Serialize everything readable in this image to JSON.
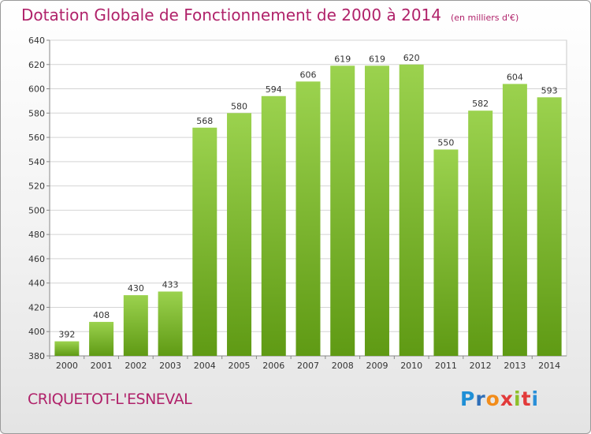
{
  "header": {
    "title": "Dotation Globale de Fonctionnement de 2000 à 2014",
    "units": "(en milliers d'€)"
  },
  "footer": {
    "commune": "CRIQUETOT-L'ESNEVAL",
    "logo_text": "Proxiti"
  },
  "colors": {
    "title": "#b0226a",
    "bar_top": "#9bd24e",
    "bar_bottom": "#5f9a14"
  },
  "chart_data": {
    "type": "bar",
    "categories": [
      "2000",
      "2001",
      "2002",
      "2003",
      "2004",
      "2005",
      "2006",
      "2007",
      "2008",
      "2009",
      "2010",
      "2011",
      "2012",
      "2013",
      "2014"
    ],
    "values": [
      392,
      408,
      430,
      433,
      568,
      580,
      594,
      606,
      619,
      619,
      620,
      550,
      582,
      604,
      593
    ],
    "title": "Dotation Globale de Fonctionnement de 2000 à 2014",
    "ylim": [
      380,
      640
    ],
    "yticks": [
      380,
      400,
      420,
      440,
      460,
      480,
      500,
      520,
      540,
      560,
      580,
      600,
      620,
      640
    ],
    "grid": true
  }
}
